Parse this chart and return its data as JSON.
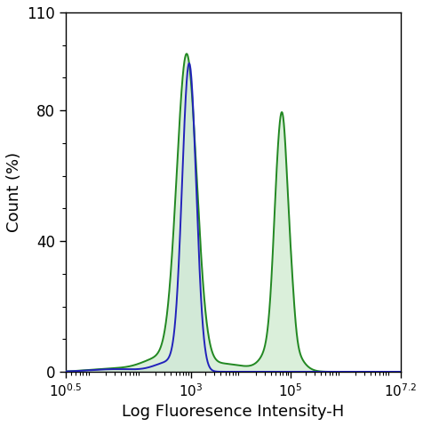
{
  "title": "",
  "xlabel": "Log Fluoresence Intensity-H",
  "ylabel": "Count (%)",
  "xmin": 0.5,
  "xmax": 7.2,
  "ymin": 0,
  "ymax": 110,
  "yticks": [
    0,
    40,
    80,
    110
  ],
  "ytick_labels": [
    "0",
    "40",
    "80",
    "110"
  ],
  "xtick_positions": [
    0.5,
    3,
    5,
    7.2
  ],
  "blue_color": "#2222bb",
  "green_color": "#228822",
  "blue_fill_color": "#c8d4ea",
  "green_fill_color": "#d4edd4",
  "background_color": "#ffffff",
  "linewidth": 1.4
}
